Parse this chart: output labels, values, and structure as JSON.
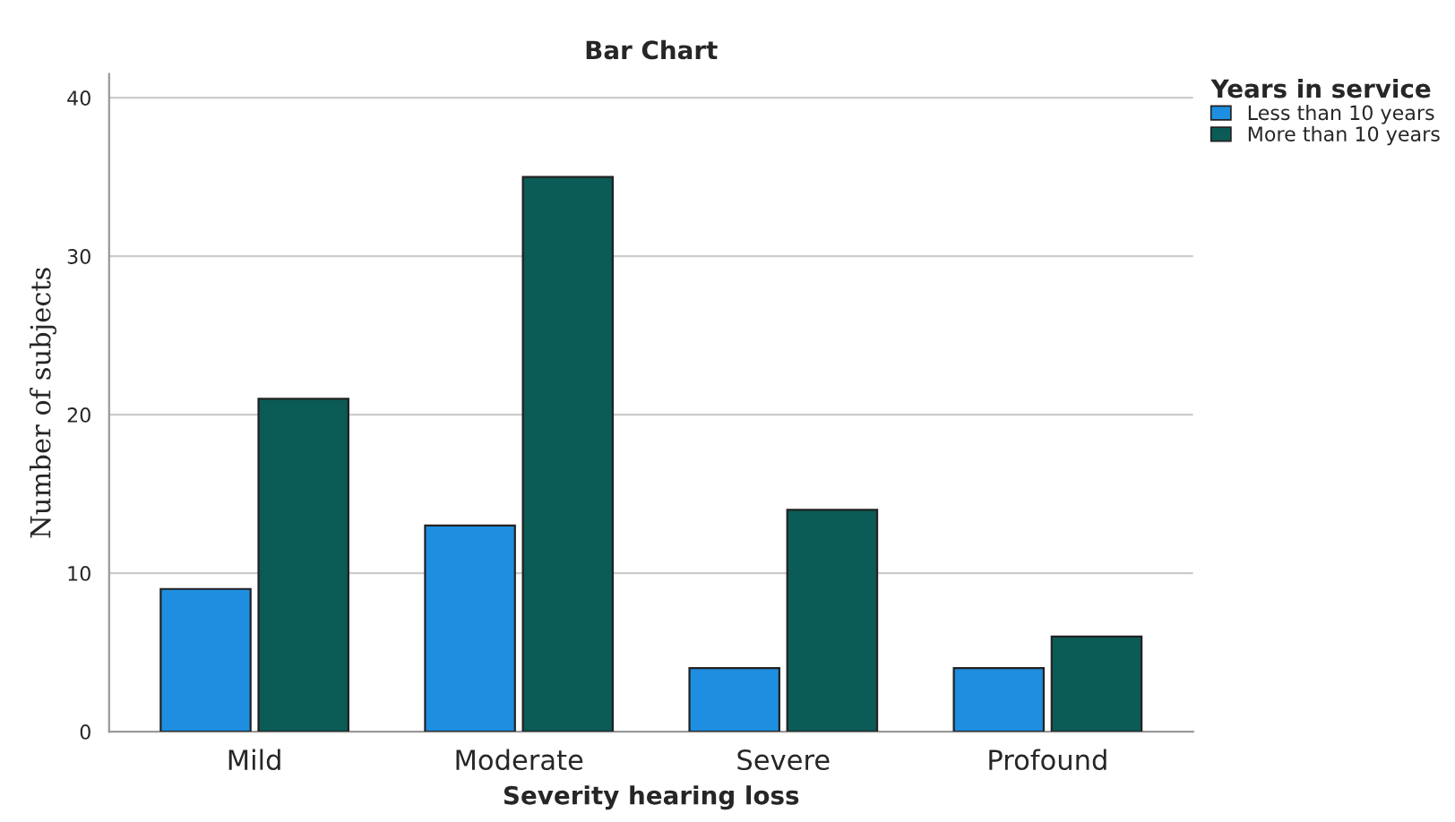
{
  "chart_data": {
    "type": "bar",
    "title": "Bar Chart",
    "xlabel": "Severity hearing loss",
    "ylabel": "Number of subjects",
    "legend_title": "Years in service",
    "categories": [
      "Mild",
      "Moderate",
      "Severe",
      "Profound"
    ],
    "series": [
      {
        "name": "Less than 10 years",
        "color": "#1e8ee0",
        "values": [
          9,
          13,
          4,
          4
        ]
      },
      {
        "name": "More than 10 years",
        "color": "#0b5b56",
        "values": [
          21,
          35,
          14,
          6
        ]
      }
    ],
    "ylim": [
      0,
      41.5
    ],
    "yticks": [
      0,
      10,
      20,
      30,
      40
    ],
    "grid": "y",
    "legend": "top right"
  }
}
